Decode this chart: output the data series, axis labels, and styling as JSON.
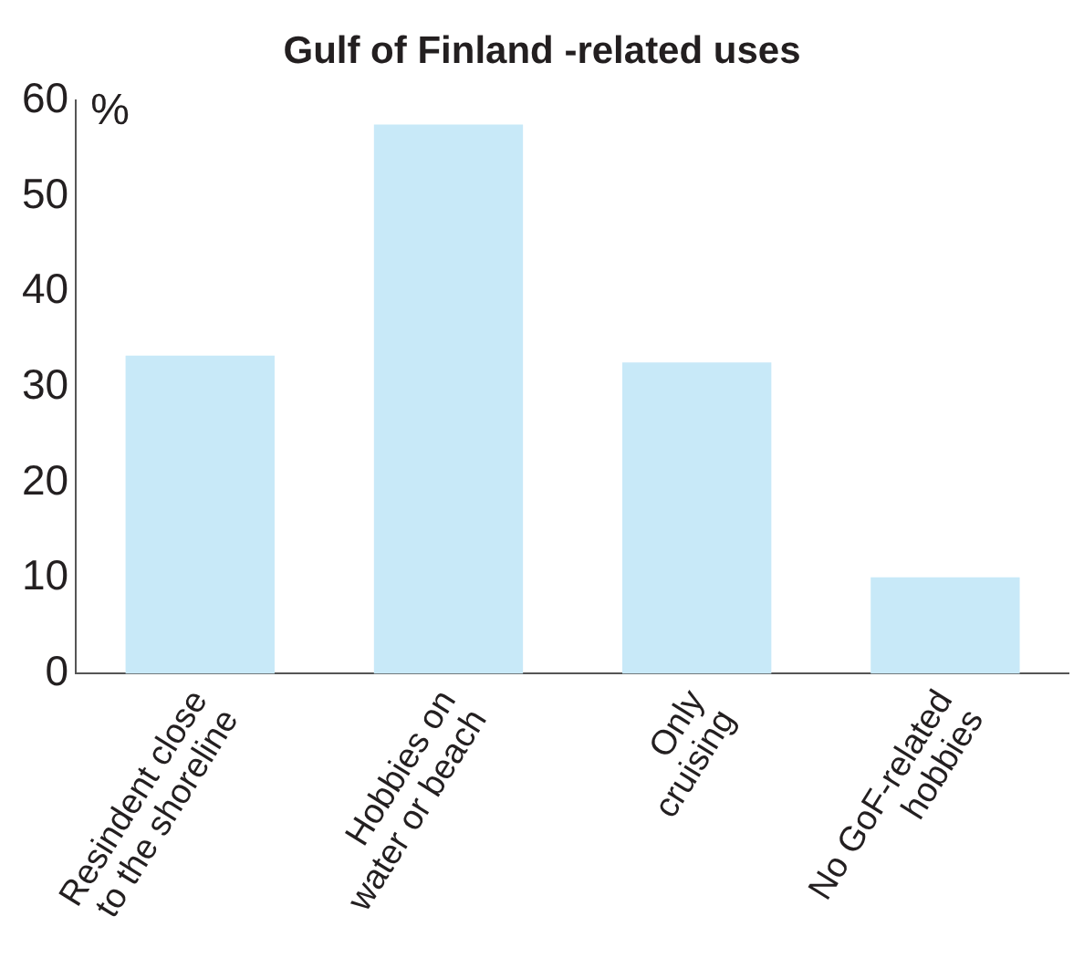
{
  "chart_data": {
    "type": "bar",
    "title": "Gulf of Finland -related uses",
    "ylabel": "%",
    "categories": [
      "Resindent close\nto the shoreline",
      "Hobbies on\nwater or beach",
      "Only\ncruising",
      "No GoF-related\nhobbies"
    ],
    "values": [
      33.3,
      57.5,
      32.6,
      10.1
    ],
    "color": "#c8e9f8",
    "ylim": [
      0,
      60
    ],
    "yticks": [
      0,
      10,
      20,
      30,
      40,
      50,
      60
    ],
    "grid": false,
    "legend": false
  }
}
